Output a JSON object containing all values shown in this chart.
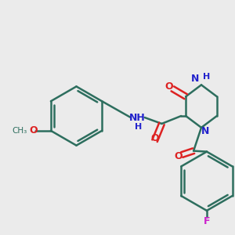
{
  "background_color": "#ebebeb",
  "bond_color": "#2d6e5e",
  "bond_width": 1.8,
  "n_color": "#2222cc",
  "o_color": "#dd2222",
  "f_color": "#cc22cc",
  "figsize": [
    3.0,
    3.0
  ],
  "dpi": 100,
  "xlim": [
    0,
    300
  ],
  "ylim": [
    0,
    300
  ]
}
